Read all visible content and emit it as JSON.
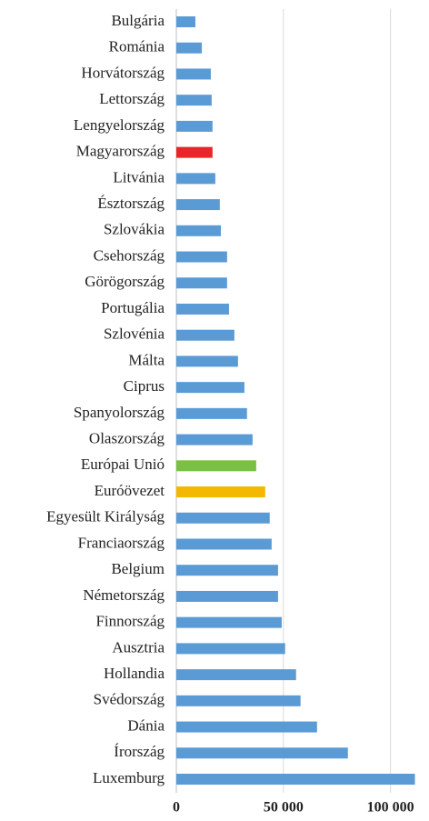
{
  "chart_data": {
    "type": "barh",
    "categories": [
      "Bulgária",
      "Románia",
      "Horvátország",
      "Lettország",
      "Lengyelország",
      "Magyarország",
      "Litvánia",
      "Észtország",
      "Szlovákia",
      "Csehország",
      "Görögország",
      "Portugália",
      "Szlovénia",
      "Málta",
      "Ciprus",
      "Spanyolország",
      "Olaszország",
      "Európai Unió",
      "Euróövezet",
      "Egyesült Királyság",
      "Franciaország",
      "Belgium",
      "Németország",
      "Finnország",
      "Ausztria",
      "Hollandia",
      "Svédország",
      "Dánia",
      "Írország",
      "Luxemburg"
    ],
    "values": [
      8900,
      11900,
      16100,
      16500,
      16900,
      16900,
      18200,
      20300,
      20800,
      23700,
      23700,
      24600,
      27100,
      28800,
      31800,
      33000,
      35600,
      37300,
      41500,
      43600,
      44500,
      47500,
      47500,
      49200,
      50800,
      55900,
      58000,
      65700,
      80100,
      111400
    ],
    "colors": [
      "#5b9bd5",
      "#5b9bd5",
      "#5b9bd5",
      "#5b9bd5",
      "#5b9bd5",
      "#e8262a",
      "#5b9bd5",
      "#5b9bd5",
      "#5b9bd5",
      "#5b9bd5",
      "#5b9bd5",
      "#5b9bd5",
      "#5b9bd5",
      "#5b9bd5",
      "#5b9bd5",
      "#5b9bd5",
      "#5b9bd5",
      "#7ac143",
      "#f5b800",
      "#5b9bd5",
      "#5b9bd5",
      "#5b9bd5",
      "#5b9bd5",
      "#5b9bd5",
      "#5b9bd5",
      "#5b9bd5",
      "#5b9bd5",
      "#5b9bd5",
      "#5b9bd5",
      "#5b9bd5"
    ],
    "xlim": [
      0,
      115000
    ],
    "xticks": [
      0,
      {
        "value": 50000,
        "label": "50 000"
      },
      {
        "value": 100000,
        "label": "100 000"
      }
    ],
    "grid": true
  }
}
